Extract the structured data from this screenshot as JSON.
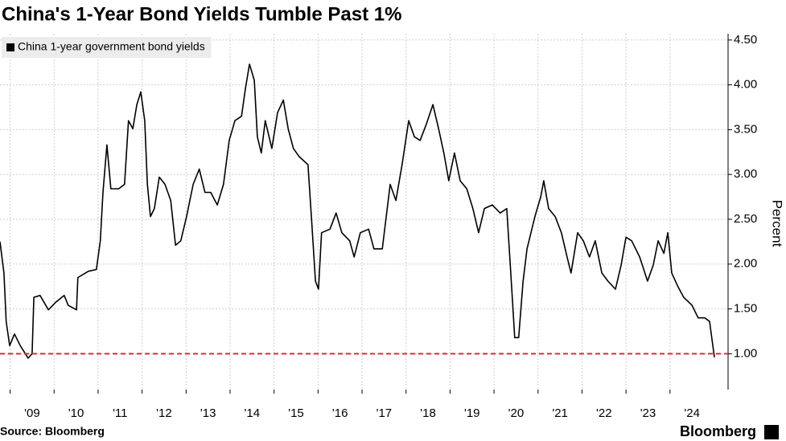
{
  "chart_data": {
    "type": "line",
    "title": "China's 1-Year Bond Yields Tumble Past 1%",
    "y_label": "Percent",
    "source": "Source: Bloomberg",
    "logo": "Bloomberg",
    "grid": true,
    "legend": "top-left",
    "reference_line": {
      "value": 1,
      "color": "#e0283c"
    },
    "xlim": [
      2008.77,
      2025.32
    ],
    "xticks": [
      {
        "value": 2009,
        "label": "'09"
      },
      {
        "value": 2010,
        "label": "'10"
      },
      {
        "value": 2011,
        "label": "'11"
      },
      {
        "value": 2012,
        "label": "'12"
      },
      {
        "value": 2013,
        "label": "'13"
      },
      {
        "value": 2014,
        "label": "'14"
      },
      {
        "value": 2015,
        "label": "'15"
      },
      {
        "value": 2016,
        "label": "'16"
      },
      {
        "value": 2017,
        "label": "'17"
      },
      {
        "value": 2018,
        "label": "'18"
      },
      {
        "value": 2019,
        "label": "'19"
      },
      {
        "value": 2020,
        "label": "'20"
      },
      {
        "value": 2021,
        "label": "'21"
      },
      {
        "value": 2022,
        "label": "'22"
      },
      {
        "value": 2023,
        "label": "'23"
      },
      {
        "value": 2024,
        "label": "'24"
      }
    ],
    "ylim": [
      0.6,
      4.57
    ],
    "yticks": [
      {
        "value": 1,
        "label": "1.00"
      },
      {
        "value": 1.5,
        "label": "1.50"
      },
      {
        "value": 2,
        "label": "2.00"
      },
      {
        "value": 2.5,
        "label": "2.50"
      },
      {
        "value": 3,
        "label": "3.00"
      },
      {
        "value": 3.5,
        "label": "3.50"
      },
      {
        "value": 4,
        "label": "4.00"
      },
      {
        "value": 4.5,
        "label": "4.50"
      }
    ],
    "x": [
      2008.77,
      2008.86,
      2008.91,
      2008.99,
      2009.1,
      2009.23,
      2009.41,
      2009.5,
      2009.54,
      2009.68,
      2009.87,
      2010.05,
      2010.23,
      2010.32,
      2010.51,
      2010.54,
      2010.78,
      2010.96,
      2011.05,
      2011.11,
      2011.2,
      2011.29,
      2011.47,
      2011.6,
      2011.69,
      2011.79,
      2011.88,
      2011.97,
      2012.06,
      2012.12,
      2012.19,
      2012.28,
      2012.39,
      2012.52,
      2012.65,
      2012.76,
      2012.88,
      2013.01,
      2013.16,
      2013.3,
      2013.43,
      2013.56,
      2013.71,
      2013.85,
      2013.98,
      2014.11,
      2014.26,
      2014.35,
      2014.44,
      2014.55,
      2014.62,
      2014.71,
      2014.8,
      2014.95,
      2015.08,
      2015.21,
      2015.32,
      2015.44,
      2015.57,
      2015.68,
      2015.77,
      2015.86,
      2015.94,
      2016.01,
      2016.08,
      2016.27,
      2016.41,
      2016.54,
      2016.72,
      2016.82,
      2016.96,
      2017.15,
      2017.27,
      2017.46,
      2017.64,
      2017.77,
      2017.91,
      2018.06,
      2018.19,
      2018.32,
      2018.46,
      2018.61,
      2018.74,
      2018.86,
      2018.97,
      2019.1,
      2019.23,
      2019.38,
      2019.52,
      2019.65,
      2019.78,
      2019.96,
      2020.14,
      2020.29,
      2020.38,
      2020.47,
      2020.56,
      2020.66,
      2020.75,
      2020.84,
      2020.93,
      2021.06,
      2021.13,
      2021.24,
      2021.39,
      2021.53,
      2021.66,
      2021.75,
      2021.9,
      2022.03,
      2022.17,
      2022.3,
      2022.45,
      2022.59,
      2022.76,
      2022.89,
      2023.0,
      2023.13,
      2023.31,
      2023.49,
      2023.62,
      2023.73,
      2023.86,
      2023.95,
      2024.04,
      2024.17,
      2024.31,
      2024.5,
      2024.64,
      2024.79,
      2024.9,
      2025.01
    ],
    "series": [
      {
        "name": "China 1-year government bond yields",
        "color": "#000000",
        "values": [
          2.25,
          1.9,
          1.36,
          1.09,
          1.22,
          1.09,
          0.95,
          1.0,
          1.63,
          1.65,
          1.49,
          1.58,
          1.65,
          1.54,
          1.49,
          1.85,
          1.92,
          1.94,
          2.26,
          2.8,
          3.33,
          2.84,
          2.84,
          2.89,
          3.6,
          3.51,
          3.78,
          3.92,
          3.6,
          2.89,
          2.53,
          2.62,
          2.97,
          2.89,
          2.71,
          2.21,
          2.26,
          2.53,
          2.89,
          3.06,
          2.8,
          2.8,
          2.66,
          2.89,
          3.38,
          3.6,
          3.65,
          3.96,
          4.23,
          4.05,
          3.42,
          3.24,
          3.6,
          3.29,
          3.69,
          3.83,
          3.51,
          3.29,
          3.2,
          3.15,
          3.11,
          2.44,
          1.81,
          1.72,
          2.35,
          2.39,
          2.57,
          2.35,
          2.26,
          2.08,
          2.35,
          2.39,
          2.17,
          2.17,
          2.89,
          2.71,
          3.11,
          3.6,
          3.42,
          3.38,
          3.56,
          3.78,
          3.51,
          3.24,
          2.93,
          3.24,
          2.93,
          2.84,
          2.62,
          2.35,
          2.62,
          2.66,
          2.57,
          2.62,
          1.9,
          1.18,
          1.18,
          1.81,
          2.17,
          2.35,
          2.53,
          2.75,
          2.93,
          2.62,
          2.53,
          2.35,
          2.08,
          1.9,
          2.35,
          2.26,
          2.08,
          2.26,
          1.9,
          1.81,
          1.72,
          1.99,
          2.3,
          2.26,
          2.08,
          1.81,
          1.99,
          2.26,
          2.12,
          2.35,
          1.9,
          1.76,
          1.63,
          1.54,
          1.4,
          1.4,
          1.36,
          0.96
        ]
      }
    ]
  }
}
